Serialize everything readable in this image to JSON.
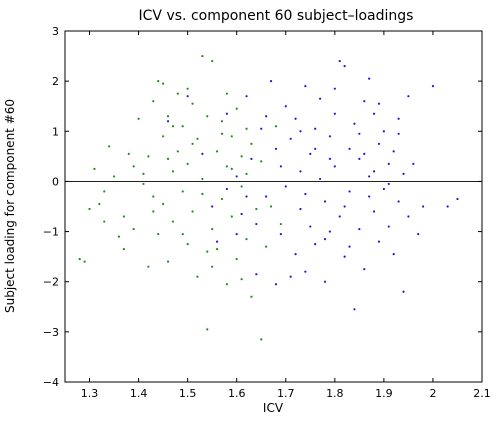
{
  "chart_data": {
    "type": "scatter",
    "title": "ICV vs. component 60 subject–loadings",
    "xlabel": "ICV",
    "ylabel": "Subject loading for component #60",
    "xlim": [
      1.25,
      2.1
    ],
    "ylim": [
      -4,
      3
    ],
    "xticks": [
      1.3,
      1.4,
      1.5,
      1.6,
      1.7,
      1.8,
      1.9,
      2,
      2.1
    ],
    "xtick_labels": [
      "1.3",
      "1.4",
      "1.5",
      "1.6",
      "1.7",
      "1.8",
      "1.9",
      "2",
      "2.1"
    ],
    "yticks": [
      -4,
      -3,
      -2,
      -1,
      0,
      1,
      2,
      3
    ],
    "ytick_labels": [
      "−4",
      "−3",
      "−2",
      "−1",
      "0",
      "1",
      "2",
      "3"
    ],
    "reference_line_y": 0,
    "grid": false,
    "series": [
      {
        "color": "#1f8a1f",
        "points": [
          [
            1.28,
            -1.55
          ],
          [
            1.29,
            -1.6
          ],
          [
            1.3,
            -0.55
          ],
          [
            1.31,
            0.25
          ],
          [
            1.32,
            -0.45
          ],
          [
            1.33,
            -0.2
          ],
          [
            1.34,
            0.7
          ],
          [
            1.35,
            0.1
          ],
          [
            1.36,
            -1.1
          ],
          [
            1.37,
            -0.7
          ],
          [
            1.38,
            0.55
          ],
          [
            1.39,
            0.3
          ],
          [
            1.39,
            -0.95
          ],
          [
            1.4,
            1.25
          ],
          [
            1.41,
            0.15
          ],
          [
            1.42,
            -1.7
          ],
          [
            1.42,
            0.5
          ],
          [
            1.43,
            1.6
          ],
          [
            1.43,
            -0.3
          ],
          [
            1.44,
            2.0
          ],
          [
            1.44,
            -1.05
          ],
          [
            1.45,
            0.9
          ],
          [
            1.45,
            -0.45
          ],
          [
            1.46,
            1.3
          ],
          [
            1.46,
            -1.6
          ],
          [
            1.47,
            0.2
          ],
          [
            1.47,
            -0.8
          ],
          [
            1.48,
            1.75
          ],
          [
            1.48,
            0.6
          ],
          [
            1.49,
            -0.2
          ],
          [
            1.49,
            1.1
          ],
          [
            1.5,
            -1.25
          ],
          [
            1.5,
            0.35
          ],
          [
            1.51,
            1.55
          ],
          [
            1.51,
            -0.6
          ],
          [
            1.52,
            0.85
          ],
          [
            1.52,
            -1.9
          ],
          [
            1.53,
            2.5
          ],
          [
            1.53,
            0.05
          ],
          [
            1.54,
            -2.95
          ],
          [
            1.54,
            1.3
          ],
          [
            1.55,
            -0.95
          ],
          [
            1.55,
            2.4
          ],
          [
            1.56,
            0.6
          ],
          [
            1.56,
            -1.35
          ],
          [
            1.57,
            0.95
          ],
          [
            1.57,
            -0.35
          ],
          [
            1.58,
            1.75
          ],
          [
            1.58,
            -2.05
          ],
          [
            1.59,
            0.25
          ],
          [
            1.59,
            -0.7
          ],
          [
            1.6,
            1.45
          ],
          [
            1.6,
            -1.55
          ],
          [
            1.61,
            0.5
          ],
          [
            1.61,
            -0.1
          ],
          [
            1.62,
            1.05
          ],
          [
            1.62,
            -1.15
          ],
          [
            1.63,
            -2.3
          ],
          [
            1.63,
            0.75
          ],
          [
            1.64,
            -0.55
          ],
          [
            1.65,
            -3.15
          ],
          [
            1.65,
            0.4
          ],
          [
            1.66,
            -1.3
          ],
          [
            1.67,
            -0.5
          ],
          [
            1.68,
            1.1
          ],
          [
            1.69,
            -0.85
          ],
          [
            1.33,
            -0.8
          ],
          [
            1.37,
            -1.35
          ],
          [
            1.41,
            -0.05
          ],
          [
            1.45,
            1.95
          ],
          [
            1.47,
            1.1
          ],
          [
            1.49,
            -1.05
          ],
          [
            1.51,
            0.75
          ],
          [
            1.53,
            -0.25
          ],
          [
            1.55,
            -1.7
          ],
          [
            1.57,
            1.2
          ],
          [
            1.59,
            0.9
          ],
          [
            1.61,
            -1.95
          ],
          [
            1.43,
            -0.6
          ],
          [
            1.46,
            0.45
          ],
          [
            1.5,
            1.85
          ],
          [
            1.54,
            -1.4
          ],
          [
            1.58,
            0.3
          ],
          [
            1.62,
            0.15
          ]
        ]
      },
      {
        "color": "#1a1ad6",
        "points": [
          [
            1.46,
            1.2
          ],
          [
            1.5,
            1.7
          ],
          [
            1.53,
            0.55
          ],
          [
            1.55,
            -0.5
          ],
          [
            1.56,
            -1.2
          ],
          [
            1.58,
            1.35
          ],
          [
            1.6,
            0.1
          ],
          [
            1.61,
            -0.65
          ],
          [
            1.62,
            1.7
          ],
          [
            1.63,
            0.45
          ],
          [
            1.64,
            -1.85
          ],
          [
            1.65,
            1.05
          ],
          [
            1.66,
            -0.3
          ],
          [
            1.67,
            2.0
          ],
          [
            1.68,
            -2.05
          ],
          [
            1.68,
            0.65
          ],
          [
            1.69,
            -1.05
          ],
          [
            1.7,
            1.5
          ],
          [
            1.7,
            -0.1
          ],
          [
            1.71,
            0.85
          ],
          [
            1.72,
            -1.45
          ],
          [
            1.72,
            1.25
          ],
          [
            1.73,
            0.2
          ],
          [
            1.73,
            -0.55
          ],
          [
            1.74,
            1.9
          ],
          [
            1.74,
            -1.8
          ],
          [
            1.75,
            0.55
          ],
          [
            1.75,
            -0.9
          ],
          [
            1.76,
            1.05
          ],
          [
            1.76,
            -1.25
          ],
          [
            1.77,
            0.05
          ],
          [
            1.77,
            1.65
          ],
          [
            1.78,
            -0.4
          ],
          [
            1.78,
            -2.0
          ],
          [
            1.79,
            0.9
          ],
          [
            1.79,
            -1.0
          ],
          [
            1.8,
            1.35
          ],
          [
            1.8,
            0.3
          ],
          [
            1.81,
            -0.7
          ],
          [
            1.81,
            2.4
          ],
          [
            1.82,
            -1.5
          ],
          [
            1.82,
            2.3
          ],
          [
            1.83,
            0.65
          ],
          [
            1.83,
            -0.2
          ],
          [
            1.84,
            1.15
          ],
          [
            1.84,
            -2.55
          ],
          [
            1.85,
            -0.95
          ],
          [
            1.85,
            0.45
          ],
          [
            1.86,
            1.6
          ],
          [
            1.86,
            -1.75
          ],
          [
            1.87,
            0.1
          ],
          [
            1.87,
            2.05
          ],
          [
            1.88,
            -0.6
          ],
          [
            1.88,
            1.35
          ],
          [
            1.89,
            -1.2
          ],
          [
            1.89,
            0.75
          ],
          [
            1.9,
            -0.15
          ],
          [
            1.9,
            1.0
          ],
          [
            1.91,
            -0.9
          ],
          [
            1.91,
            0.35
          ],
          [
            1.92,
            0.6
          ],
          [
            1.92,
            -1.45
          ],
          [
            1.93,
            1.25
          ],
          [
            1.93,
            -0.4
          ],
          [
            1.94,
            0.15
          ],
          [
            1.94,
            -2.2
          ],
          [
            1.95,
            1.7
          ],
          [
            1.95,
            -0.7
          ],
          [
            1.96,
            0.35
          ],
          [
            1.97,
            -1.05
          ],
          [
            1.98,
            -0.5
          ],
          [
            2.0,
            1.9
          ],
          [
            2.03,
            -0.5
          ],
          [
            2.05,
            -0.35
          ],
          [
            1.71,
            -1.9
          ],
          [
            1.73,
            1.0
          ],
          [
            1.76,
            0.65
          ],
          [
            1.78,
            -1.15
          ],
          [
            1.8,
            1.85
          ],
          [
            1.83,
            -1.3
          ],
          [
            1.85,
            0.95
          ],
          [
            1.87,
            -0.3
          ],
          [
            1.89,
            1.55
          ],
          [
            1.91,
            -0.05
          ],
          [
            1.69,
            0.3
          ],
          [
            1.66,
            1.3
          ],
          [
            1.64,
            -0.85
          ],
          [
            1.62,
            -0.3
          ],
          [
            1.6,
            -1.05
          ],
          [
            1.58,
            -0.15
          ],
          [
            1.74,
            -0.25
          ],
          [
            1.79,
            0.45
          ],
          [
            1.82,
            -0.5
          ],
          [
            1.86,
            0.55
          ],
          [
            1.88,
            0.2
          ],
          [
            1.93,
            0.95
          ]
        ]
      }
    ]
  }
}
